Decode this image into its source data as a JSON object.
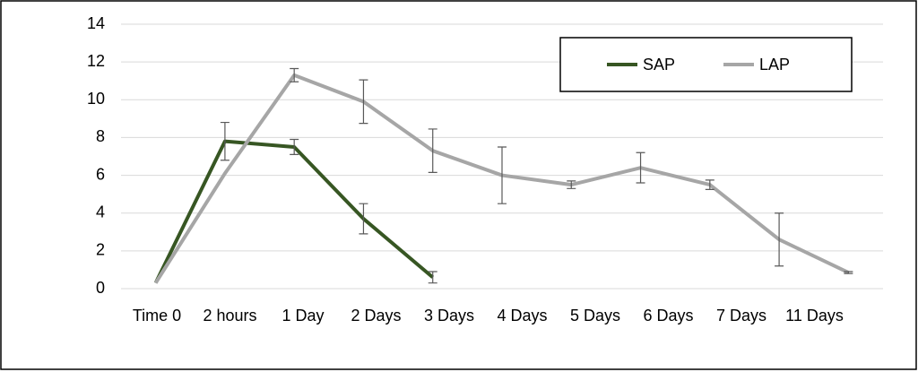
{
  "chart_data": {
    "type": "line",
    "categories": [
      "Time 0",
      "2 hours",
      "1 Day",
      "2 Days",
      "3 Days",
      "4 Days",
      "5 Days",
      "6 Days",
      "7 Days",
      "11 Days",
      null
    ],
    "series": [
      {
        "name": "SAP",
        "color": "#375623",
        "values": [
          0.3,
          7.8,
          7.5,
          3.7,
          0.6,
          null,
          null,
          null,
          null,
          null,
          null
        ],
        "errors": [
          0,
          1.0,
          0.4,
          0.8,
          0.3,
          null,
          null,
          null,
          null,
          null,
          null
        ]
      },
      {
        "name": "LAP",
        "color": "#a6a6a6",
        "values": [
          0.3,
          6.1,
          11.3,
          9.9,
          7.3,
          6.0,
          5.5,
          6.4,
          5.5,
          2.6,
          0.85
        ],
        "errors": [
          0,
          0,
          0.35,
          1.15,
          1.15,
          1.5,
          0.2,
          0.8,
          0.25,
          1.4,
          0.05
        ]
      }
    ],
    "ylim": [
      0,
      14
    ],
    "yticks": [
      0,
      2,
      4,
      6,
      8,
      10,
      12,
      14
    ],
    "grid": true,
    "legend": "top-right"
  }
}
